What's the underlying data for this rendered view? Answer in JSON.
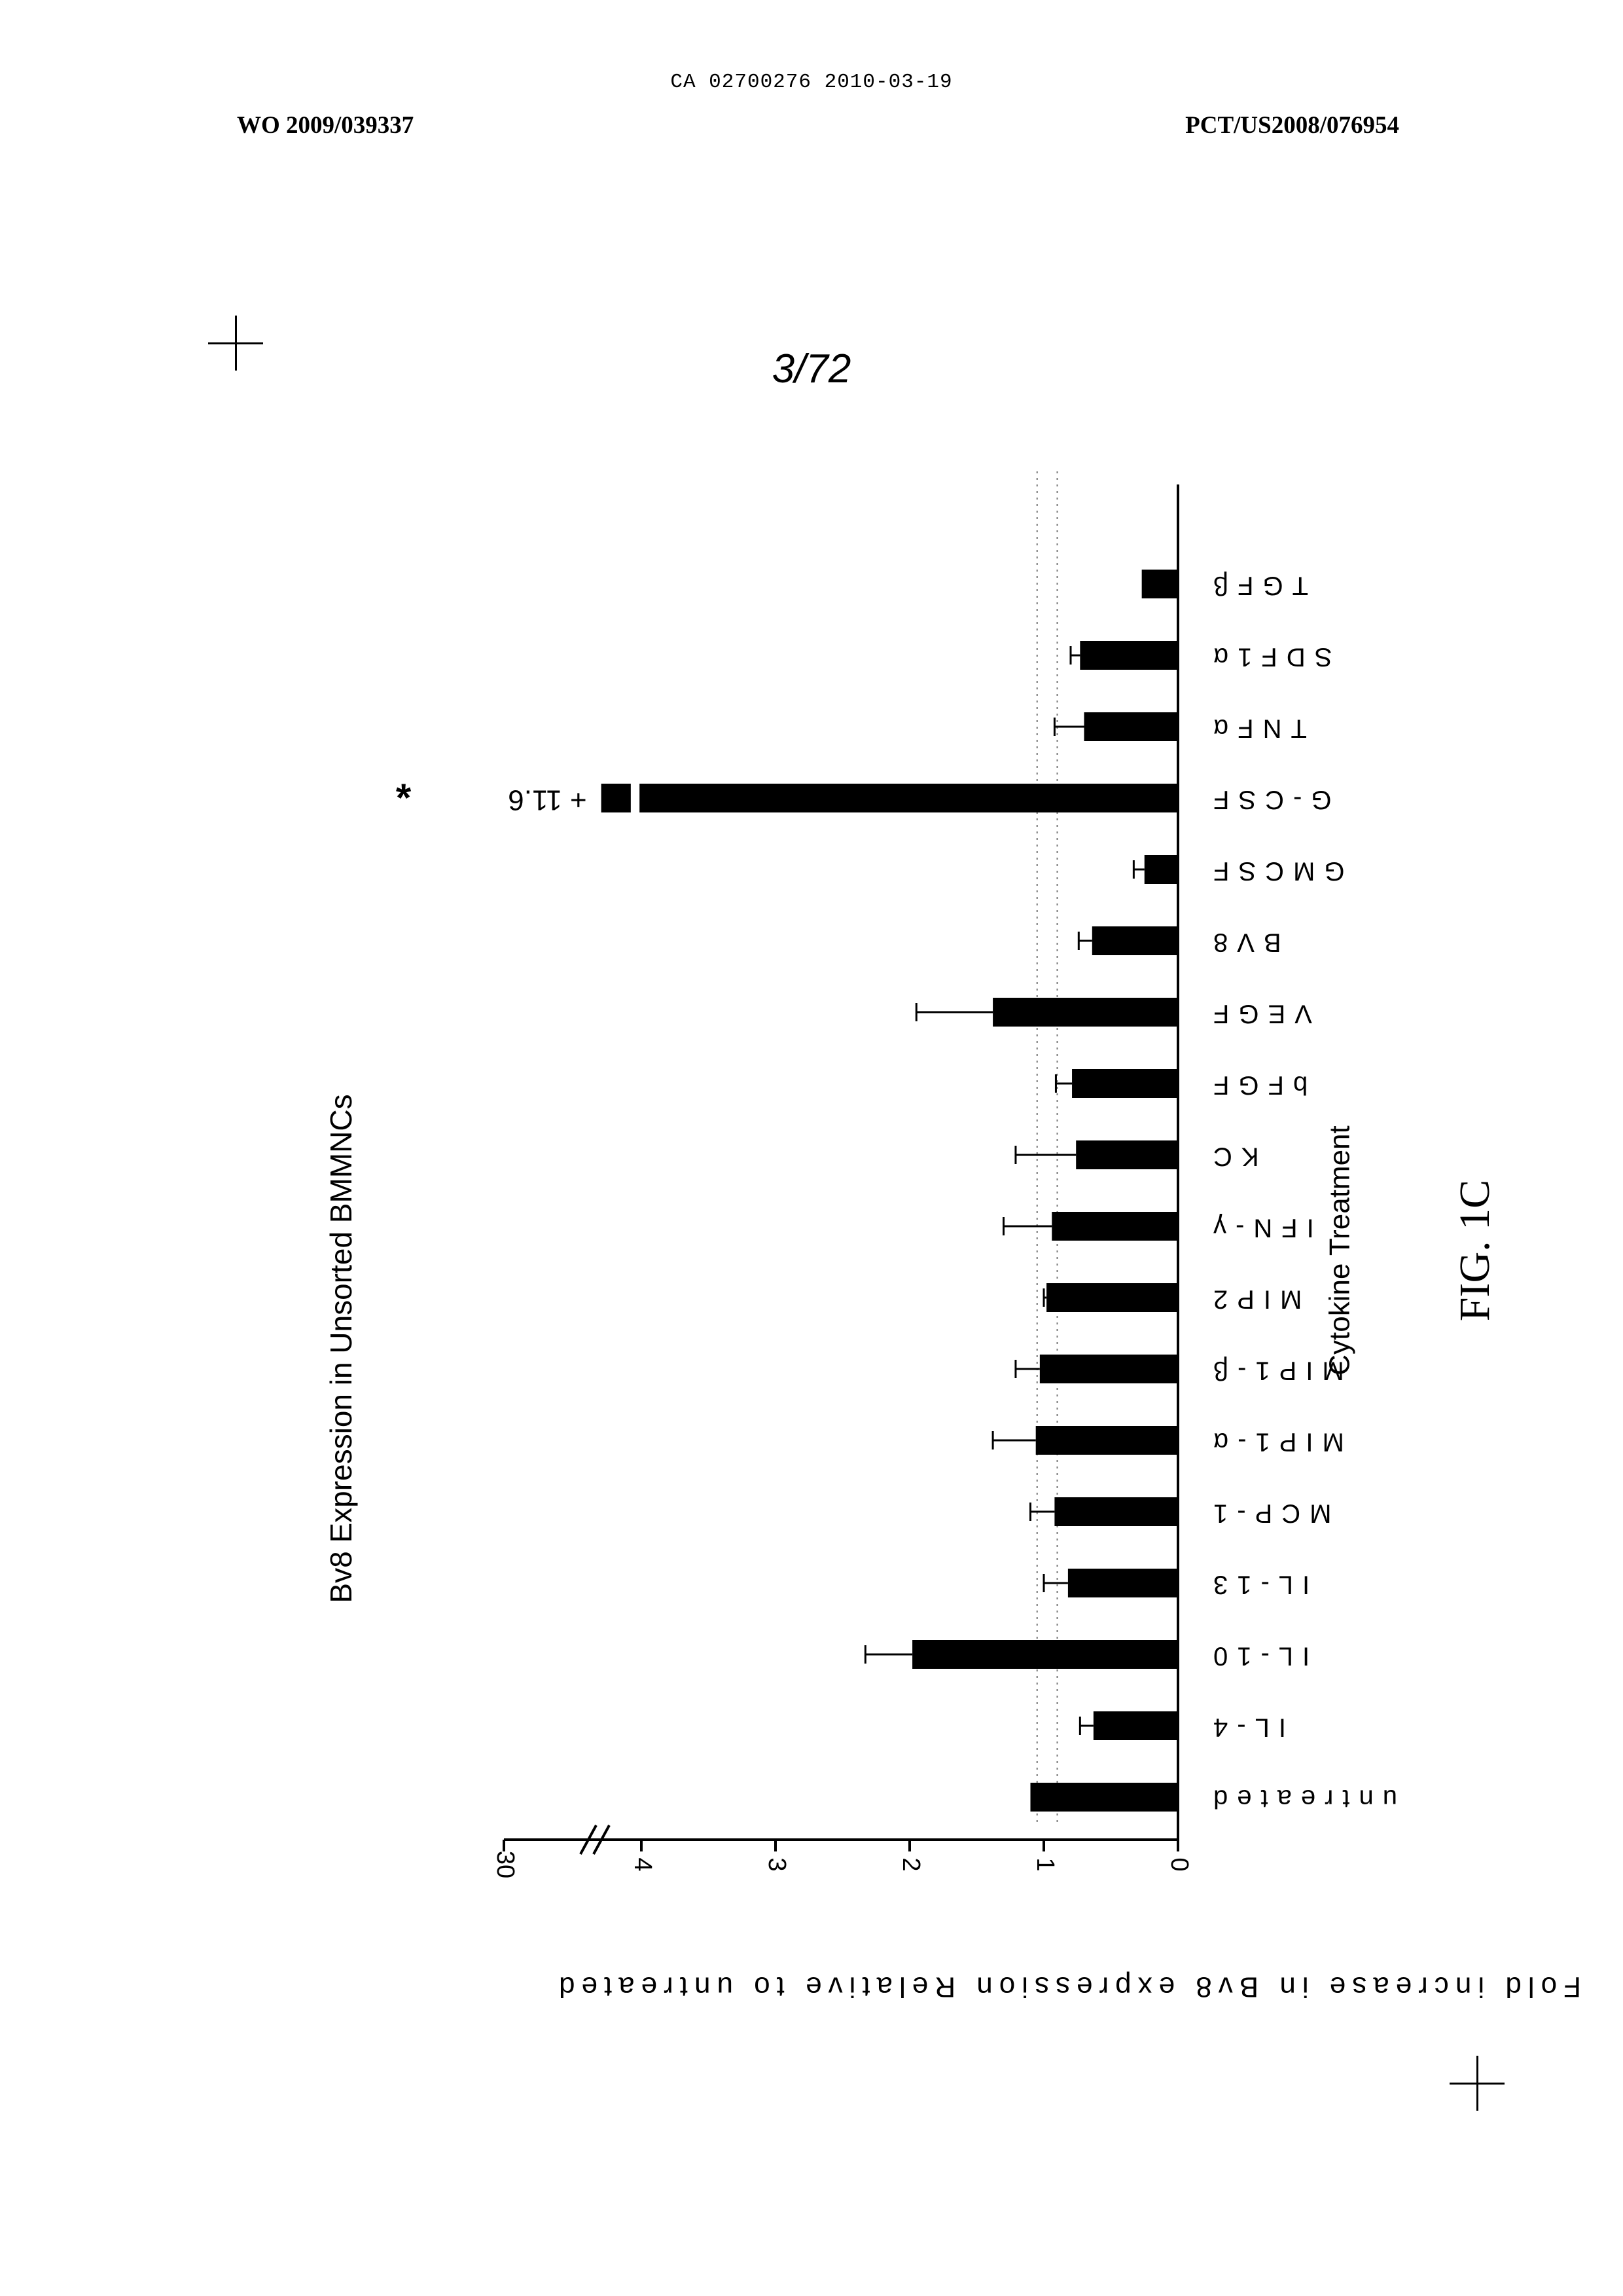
{
  "header": {
    "doc_id": "CA 02700276 2010-03-19",
    "left": "WO 2009/039337",
    "right": "PCT/US2008/076954"
  },
  "page_number": "3/72",
  "figure_label": "FIG. 1C",
  "chart_data": {
    "type": "bar",
    "title": "Bv8 Expression in Unsorted BMMNCs",
    "xlabel": "Cytokine Treatment",
    "ylabel": "Fold increase in Bv8 expression Relative to untreated",
    "categories": [
      "untreated",
      "IL-4",
      "IL-10",
      "IL-13",
      "MCP-1",
      "MIP1-α",
      "MIP1-β",
      "MIP2",
      "IFN-γ",
      "KC",
      "bFGF",
      "VEGF",
      "BV8",
      "GMCSF",
      "G-CSF",
      "TNFα",
      "SDF1α",
      "TGFβ"
    ],
    "values": [
      1.1,
      0.63,
      1.98,
      0.82,
      0.92,
      1.06,
      1.03,
      0.98,
      0.94,
      0.76,
      0.79,
      1.38,
      0.64,
      0.25,
      11.6,
      0.7,
      0.73,
      0.27
    ],
    "errors": [
      0.0,
      0.1,
      0.35,
      0.18,
      0.18,
      0.32,
      0.18,
      0.02,
      0.36,
      0.45,
      0.12,
      0.57,
      0.1,
      0.08,
      0.0,
      0.22,
      0.07,
      0.0
    ],
    "break_label": "+ 11.6",
    "significance": "*",
    "yticks": [
      "0",
      "1",
      "2",
      "3",
      "4",
      "30"
    ],
    "ylim": [
      0,
      30
    ],
    "axis_break": "between 4 and 30",
    "reference_lines": [
      0.9,
      1.05
    ],
    "orientation": "rotated 90° (value axis horizontal)",
    "bar_color": "#000000"
  }
}
